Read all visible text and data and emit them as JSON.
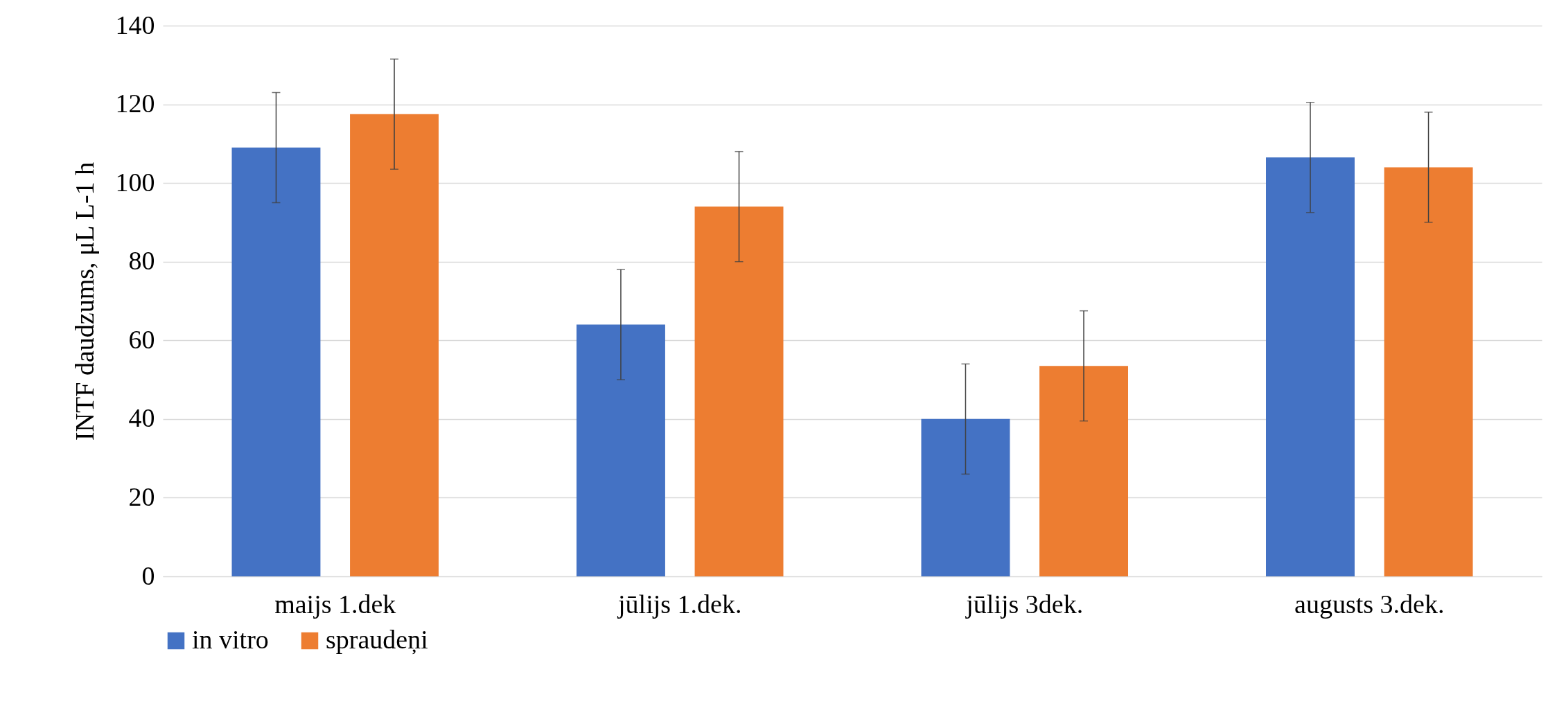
{
  "chart_data": {
    "type": "bar",
    "ylabel": "INTF daudzums, μL L-1 h",
    "categories": [
      "maijs 1.dek",
      "jūlijs 1.dek.",
      "jūlijs 3dek.",
      "augusts 3.dek."
    ],
    "series": [
      {
        "name": "in vitro",
        "color": "#4472c4",
        "values": [
          109,
          64,
          40,
          106.5
        ],
        "errors": [
          14,
          14,
          14,
          14
        ]
      },
      {
        "name": "spraudeņi",
        "color": "#ed7d31",
        "values": [
          117.5,
          94,
          53.5,
          104
        ],
        "errors": [
          14,
          14,
          14,
          14
        ]
      }
    ],
    "ylim": [
      0,
      140
    ],
    "yticks": [
      0,
      20,
      40,
      60,
      80,
      100,
      120,
      140
    ],
    "grid": "y",
    "legend": "bottom"
  }
}
